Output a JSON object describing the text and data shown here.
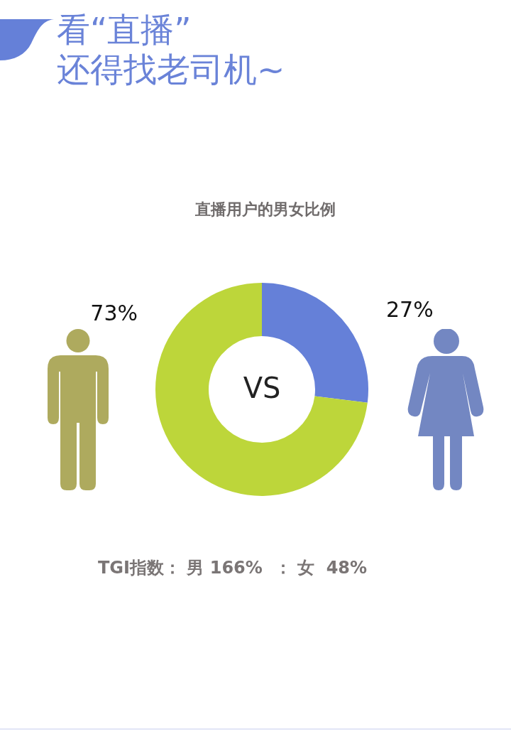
{
  "chart_data": {
    "type": "donut",
    "title": "看“直播”\n还得找老司机~",
    "subtitle": "直播用户的男女比例",
    "categories": [
      null,
      null
    ],
    "values": [
      27,
      73
    ],
    "colors": [
      "#6580d8",
      "#bdd63a"
    ],
    "value_labels": [
      "27%",
      "73%"
    ],
    "annotations": [
      "VS",
      "TGI指数： 男 166%  ： 女  48%"
    ]
  }
}
